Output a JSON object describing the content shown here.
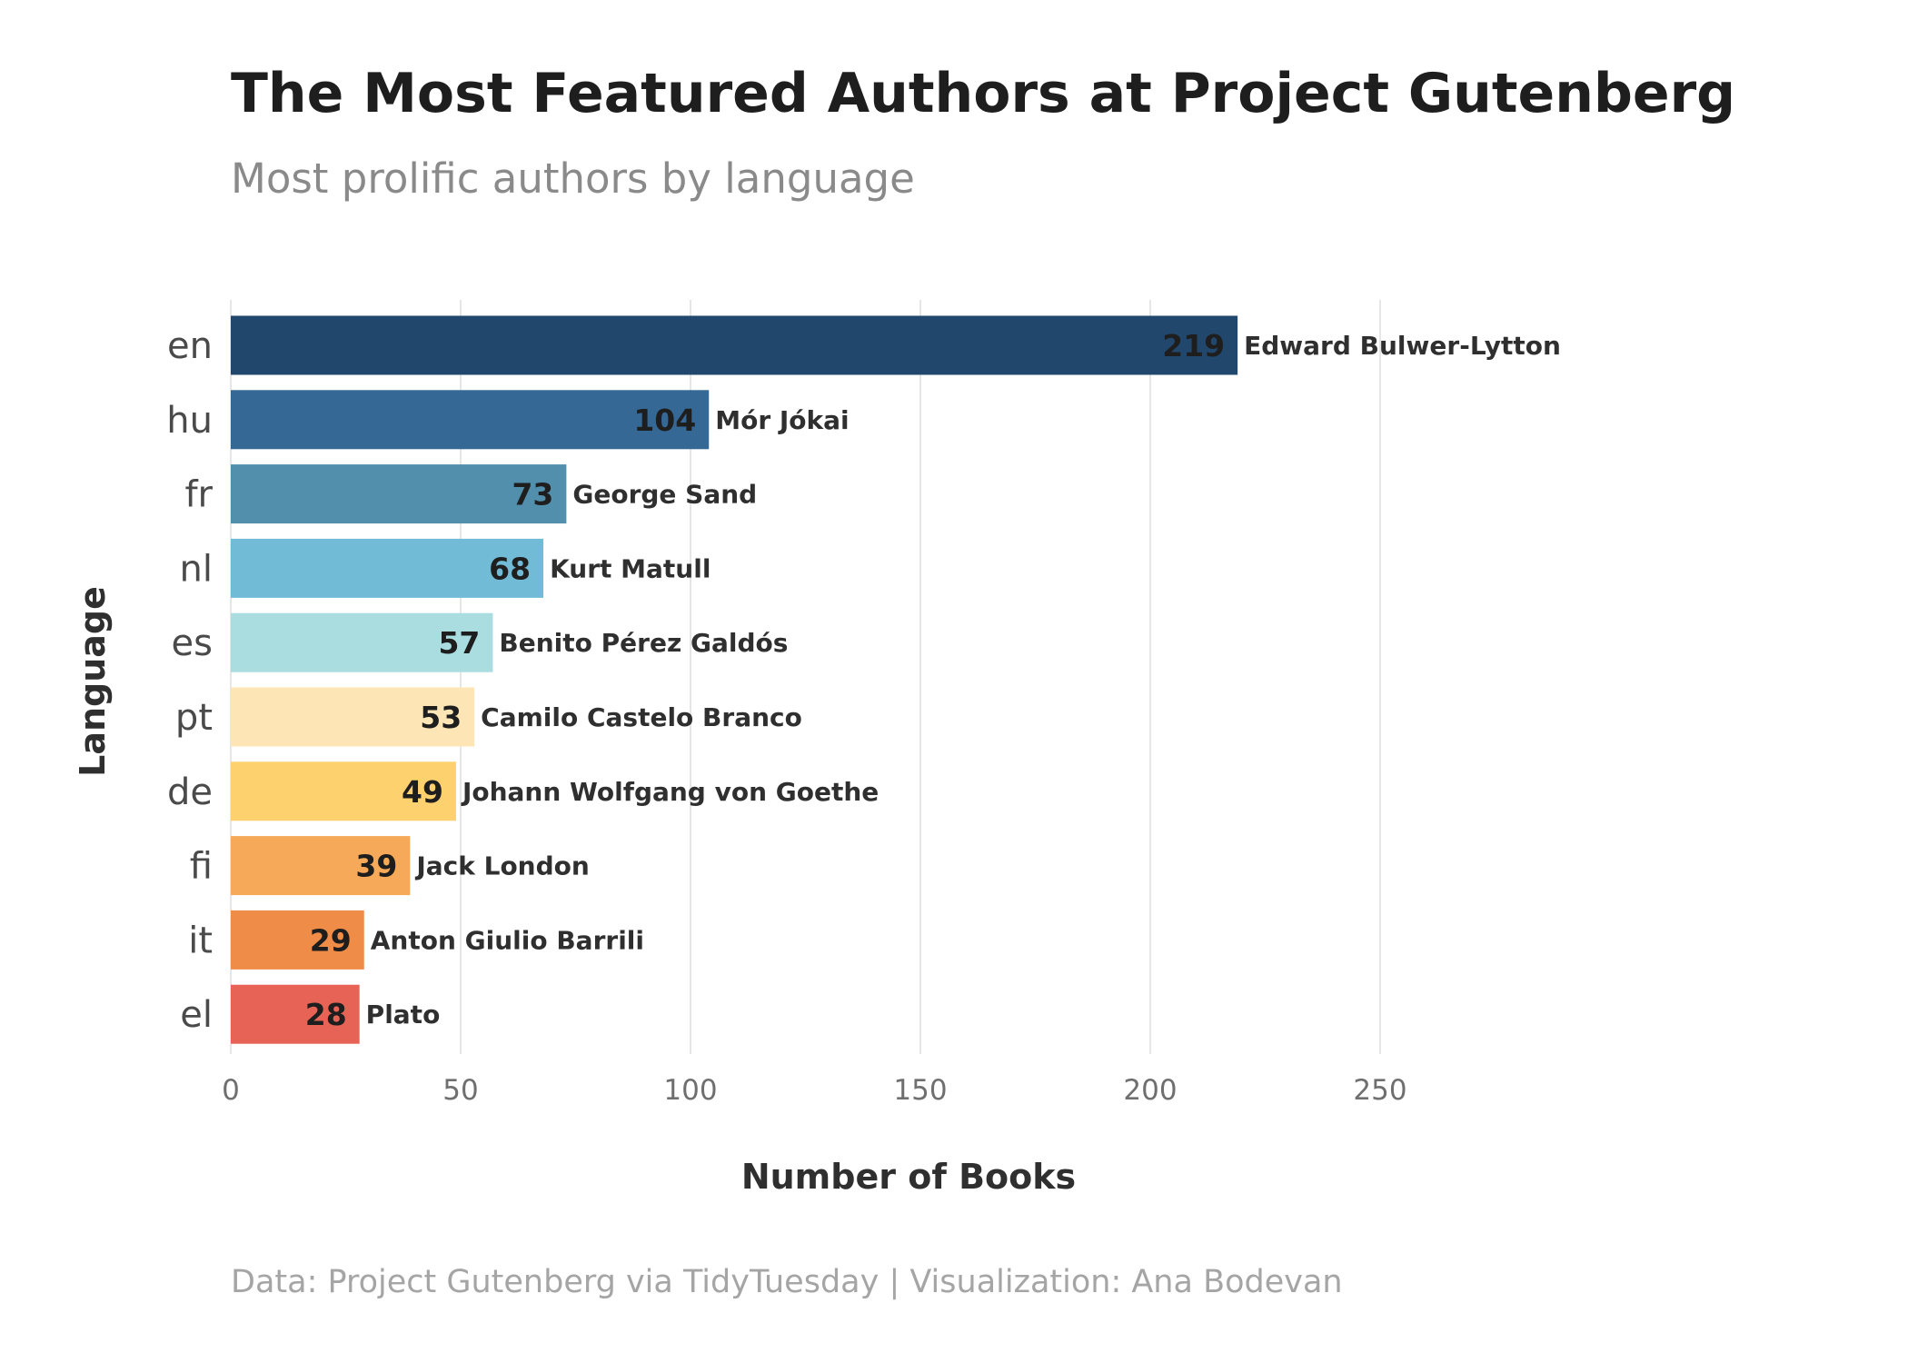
{
  "chart_data": {
    "type": "bar",
    "orientation": "horizontal",
    "title": "The Most Featured Authors at Project Gutenberg",
    "subtitle": "Most prolific authors by language",
    "caption": "Data: Project Gutenberg via TidyTuesday | Visualization: Ana Bodevan",
    "xlabel": "Number of Books",
    "ylabel": "Language",
    "xlim": [
      0,
      300
    ],
    "xticks": [
      0,
      50,
      100,
      150,
      200,
      250
    ],
    "grid": true,
    "bars": [
      {
        "language": "en",
        "value": 219,
        "author": "Edward Bulwer-Lytton",
        "color": "#21476d"
      },
      {
        "language": "hu",
        "value": 104,
        "author": "Mór Jókai",
        "color": "#366895"
      },
      {
        "language": "fr",
        "value": 73,
        "author": "George Sand",
        "color": "#528fac"
      },
      {
        "language": "nl",
        "value": 68,
        "author": "Kurt Matull",
        "color": "#72bbd6"
      },
      {
        "language": "es",
        "value": 57,
        "author": "Benito Pérez Galdós",
        "color": "#aadde0"
      },
      {
        "language": "pt",
        "value": 53,
        "author": "Camilo Castelo Branco",
        "color": "#fee5b6"
      },
      {
        "language": "de",
        "value": 49,
        "author": "Johann Wolfgang von Goethe",
        "color": "#fed16f"
      },
      {
        "language": "fi",
        "value": 39,
        "author": "Jack London",
        "color": "#f6aa59"
      },
      {
        "language": "it",
        "value": 29,
        "author": "Anton Giulio Barrili",
        "color": "#ef8c47"
      },
      {
        "language": "el",
        "value": 28,
        "author": "Plato",
        "color": "#e66356"
      }
    ]
  }
}
